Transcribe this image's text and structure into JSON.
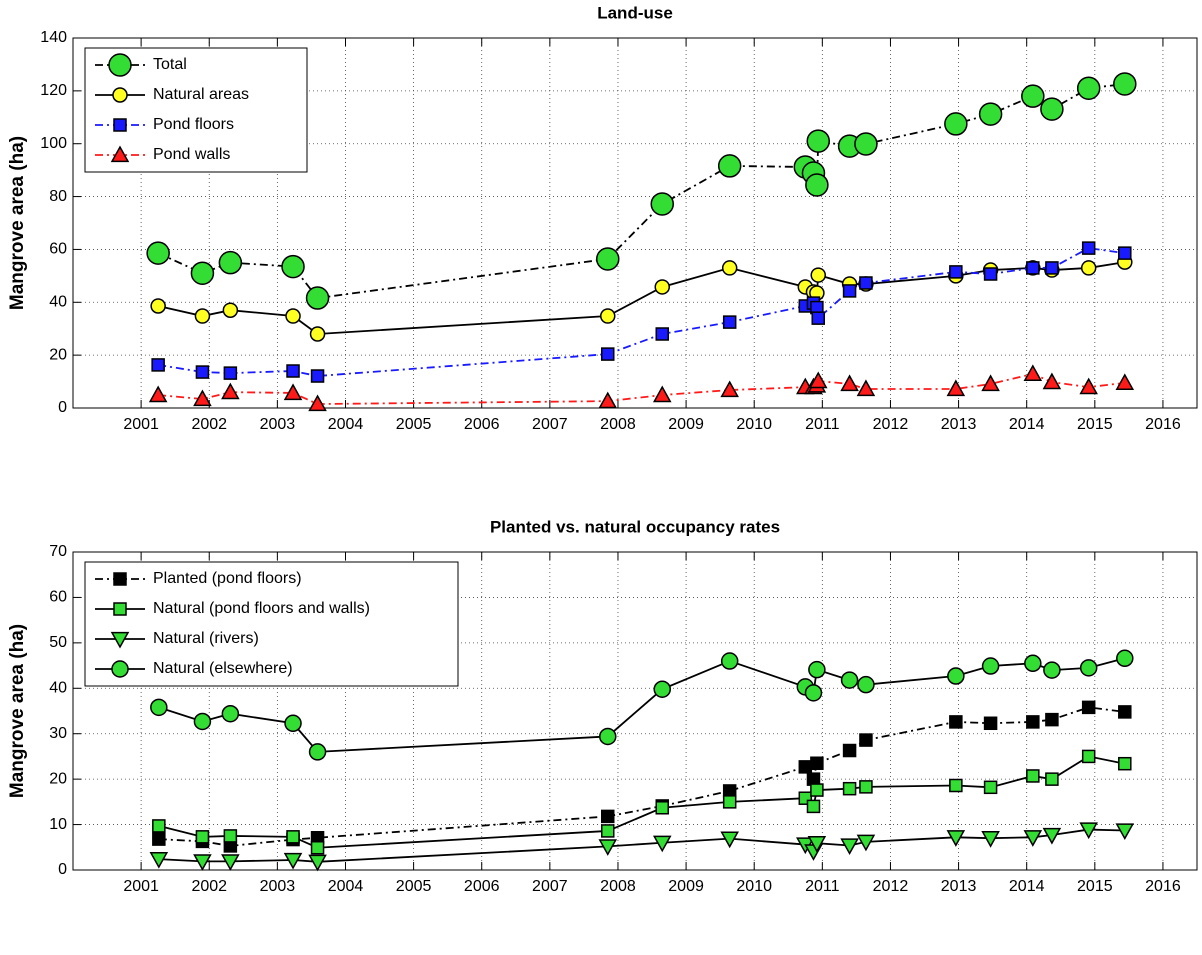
{
  "chart_data": [
    {
      "type": "line",
      "title": "Land-use",
      "y_label": "Mangrove area (ha)",
      "x": [
        2001.25,
        2001.9,
        2002.31,
        2003.23,
        2003.59,
        2007.85,
        2008.65,
        2009.64,
        2010.75,
        2010.87,
        2010.92,
        2010.94,
        2011.4,
        2011.64,
        2012.96,
        2013.47,
        2014.09,
        2014.37,
        2014.91,
        2015.44
      ],
      "series": [
        {
          "name": "Total",
          "color": "#33dd33",
          "line_color": "#000000",
          "line_style": "dashdot",
          "marker": "circle",
          "marker_size": 11,
          "values": [
            58.6,
            51,
            55,
            53.5,
            41.6,
            56.4,
            77.2,
            91.6,
            91.2,
            88.9,
            84.4,
            101,
            99.1,
            99.9,
            107.5,
            111.2,
            118,
            113.1,
            121,
            122.6
          ]
        },
        {
          "name": "Natural areas",
          "color": "#ffff22",
          "line_color": "#000000",
          "line_style": "solid",
          "marker": "circle",
          "marker_size": 7,
          "values": [
            38.6,
            34.8,
            37,
            34.8,
            28,
            34.8,
            45.8,
            53,
            45.8,
            43.9,
            43.5,
            50.3,
            46.9,
            46.9,
            50,
            52.2,
            53,
            52.2,
            53,
            55.2
          ]
        },
        {
          "name": "Pond floors",
          "color": "#1a1aff",
          "line_color": "#1a1aff",
          "line_style": "dashdot",
          "marker": "square",
          "marker_size": 6,
          "values": [
            16.3,
            13.6,
            13.2,
            14,
            12.1,
            20.4,
            28,
            32.5,
            38.6,
            39.7,
            38,
            34,
            44.3,
            47.3,
            51.5,
            50.7,
            53,
            53,
            60.5,
            58.6
          ]
        },
        {
          "name": "Pond walls",
          "color": "#ff1a1a",
          "line_color": "#ff1a1a",
          "line_style": "dashdot",
          "marker": "triangle-up",
          "marker_size": 8,
          "values": [
            4.9,
            3.4,
            6,
            5.7,
            1.5,
            2.6,
            4.9,
            6.8,
            7.9,
            7.9,
            8.5,
            10.2,
            9.1,
            7.2,
            7.2,
            9.1,
            12.9,
            9.8,
            7.9,
            9.5
          ]
        }
      ],
      "xlim": [
        2000,
        2016.5
      ],
      "xticks": [
        2001,
        2002,
        2003,
        2004,
        2005,
        2006,
        2007,
        2008,
        2009,
        2010,
        2011,
        2012,
        2013,
        2014,
        2015,
        2016
      ],
      "ylim": [
        0,
        140
      ],
      "yticks": [
        0,
        20,
        40,
        60,
        80,
        100,
        120,
        140
      ],
      "grid": true,
      "legend": "upper left"
    },
    {
      "type": "line",
      "title": "Planted vs. natural occupancy rates",
      "y_label": "Mangrove area (ha)",
      "x": [
        2001.26,
        2001.9,
        2002.31,
        2003.23,
        2003.59,
        2007.85,
        2008.65,
        2009.64,
        2010.75,
        2010.87,
        2010.92,
        2011.4,
        2011.64,
        2012.96,
        2013.47,
        2014.09,
        2014.37,
        2014.91,
        2015.44
      ],
      "series": [
        {
          "name": "Planted (pond floors)",
          "color": "#000000",
          "line_color": "#000000",
          "line_style": "dashdot",
          "marker": "square",
          "marker_size": 6,
          "values": [
            6.8,
            6.3,
            5.3,
            6.7,
            7.1,
            11.8,
            14.1,
            17.4,
            22.7,
            20,
            23.5,
            26.3,
            28.6,
            32.6,
            32.3,
            32.6,
            33.1,
            35.8,
            34.8
          ]
        },
        {
          "name": "Natural (pond floors and walls)",
          "color": "#33dd33",
          "line_color": "#000000",
          "line_style": "solid",
          "marker": "square",
          "marker_size": 6,
          "values": [
            9.7,
            7.3,
            7.5,
            7.3,
            4.9,
            8.6,
            13.7,
            15,
            15.8,
            14,
            17.6,
            17.9,
            18.3,
            18.6,
            18.2,
            20.7,
            20,
            25,
            23.4
          ]
        },
        {
          "name": "Natural (rivers)",
          "color": "#33dd33",
          "line_color": "#000000",
          "line_style": "solid",
          "marker": "triangle-down",
          "marker_size": 8,
          "values": [
            2.4,
            1.9,
            1.9,
            2.2,
            1.8,
            5.2,
            6,
            6.9,
            5.6,
            4.1,
            5.9,
            5.4,
            6.2,
            7.2,
            7,
            7.2,
            7.7,
            8.9,
            8.7
          ]
        },
        {
          "name": "Natural (elsewhere)",
          "color": "#33dd33",
          "line_color": "#000000",
          "line_style": "solid",
          "marker": "circle",
          "marker_size": 8,
          "values": [
            35.8,
            32.7,
            34.4,
            32.3,
            26,
            29.4,
            39.8,
            46,
            40.3,
            39,
            44.1,
            41.8,
            40.8,
            42.7,
            44.9,
            45.5,
            44,
            44.5,
            46.6
          ]
        }
      ],
      "xlim": [
        2000,
        2016.5
      ],
      "xticks": [
        2001,
        2002,
        2003,
        2004,
        2005,
        2006,
        2007,
        2008,
        2009,
        2010,
        2011,
        2012,
        2013,
        2014,
        2015,
        2016
      ],
      "ylim": [
        0,
        70
      ],
      "yticks": [
        0,
        10,
        20,
        30,
        40,
        50,
        60,
        70
      ],
      "grid": true,
      "legend": "upper left"
    }
  ]
}
